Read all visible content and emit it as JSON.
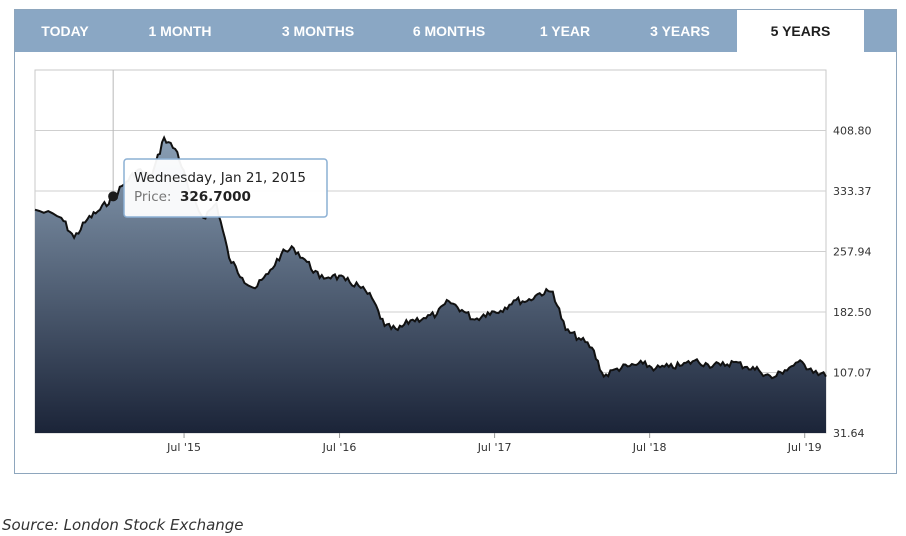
{
  "tabs": [
    {
      "label": "TODAY",
      "active": false
    },
    {
      "label": "1 MONTH",
      "active": false
    },
    {
      "label": "3 MONTHS",
      "active": false
    },
    {
      "label": "6 MONTHS",
      "active": false
    },
    {
      "label": "1 YEAR",
      "active": false
    },
    {
      "label": "3 YEARS",
      "active": false
    },
    {
      "label": "5 YEARS",
      "active": true
    }
  ],
  "tooltip": {
    "date": "Wednesday, Jan 21, 2015",
    "price_label": "Price:",
    "price_value": "326.7000"
  },
  "source": "Source: London Stock Exchange",
  "colors": {
    "tab_bg": "#8aa7c4",
    "area_top": "#8a9fb5",
    "area_bottom": "#1b2438",
    "line": "#111111"
  },
  "chart_data": {
    "type": "area",
    "title": "",
    "xlabel": "",
    "ylabel": "",
    "y_ticks": [
      "408.80",
      "333.37",
      "257.94",
      "182.50",
      "107.07",
      "31.64"
    ],
    "x_ticks": [
      "Jul '15",
      "Jul '16",
      "Jul '17",
      "Jul '18",
      "Jul '19"
    ],
    "ylim": [
      31.64,
      484.23
    ],
    "grid": true,
    "axis_side": "right",
    "series": [
      {
        "x": [
          "2014-08",
          "2014-09",
          "2014-10",
          "2014-11",
          "2014-12",
          "2015-01",
          "2015-02",
          "2015-03",
          "2015-04",
          "2015-05",
          "2015-06",
          "2015-07",
          "2015-08",
          "2015-09",
          "2015-10",
          "2015-11",
          "2015-12",
          "2016-01",
          "2016-02",
          "2016-03",
          "2016-04",
          "2016-05",
          "2016-06",
          "2016-07",
          "2016-08",
          "2016-09",
          "2016-10",
          "2016-11",
          "2016-12",
          "2017-01",
          "2017-02",
          "2017-03",
          "2017-04",
          "2017-05",
          "2017-06",
          "2017-07",
          "2017-08",
          "2017-09",
          "2017-10",
          "2017-11",
          "2017-12",
          "2018-01",
          "2018-02",
          "2018-03",
          "2018-04",
          "2018-05",
          "2018-06",
          "2018-07",
          "2018-08",
          "2018-09",
          "2018-10",
          "2018-11",
          "2018-12",
          "2019-01",
          "2019-02",
          "2019-03",
          "2019-04",
          "2019-05",
          "2019-06",
          "2019-07",
          "2019-08"
        ],
        "values": [
          310,
          300,
          275,
          298,
          310,
          326.7,
          345,
          360,
          350,
          400,
          382,
          330,
          300,
          318,
          250,
          225,
          212,
          230,
          255,
          262,
          245,
          225,
          228,
          222,
          215,
          200,
          165,
          160,
          172,
          175,
          180,
          196,
          185,
          173,
          182,
          184,
          197,
          196,
          206,
          208,
          160,
          150,
          138,
          102,
          112,
          115,
          118,
          112,
          114,
          116,
          122,
          117,
          116,
          120,
          114,
          110,
          100,
          110,
          120,
          112,
          102
        ]
      }
    ]
  }
}
